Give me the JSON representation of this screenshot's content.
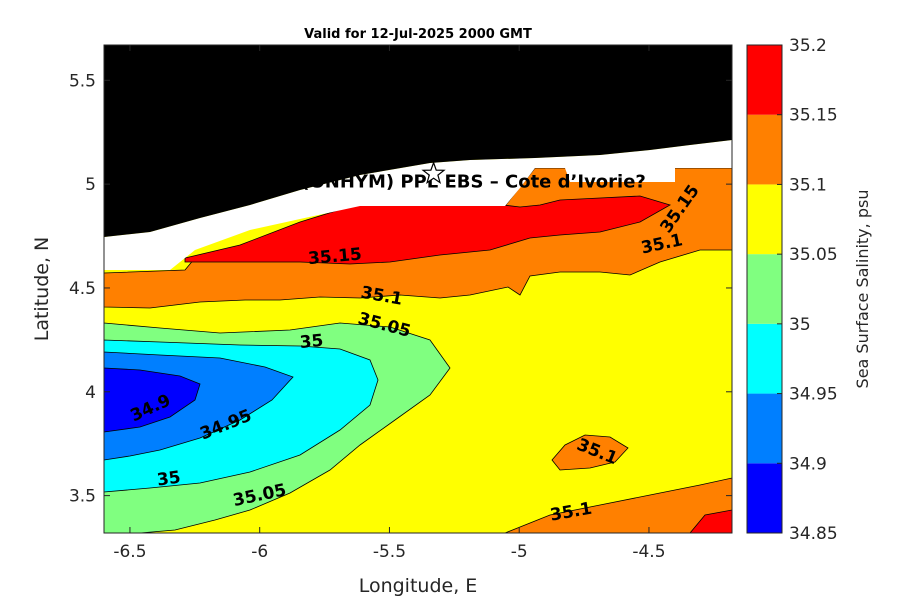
{
  "chart_data": {
    "type": "heatmap",
    "subtype": "filled-contour",
    "title": "Valid for 12-Jul-2025 2000 GMT",
    "xlabel": "Longitude, E",
    "ylabel": "Latitude, N",
    "xlim": [
      -6.6,
      -4.18
    ],
    "ylim": [
      3.32,
      5.67
    ],
    "xticks": [
      -6.5,
      -6,
      -5.5,
      -5,
      -4.5
    ],
    "xtick_labels": [
      "-6.5",
      "-6",
      "-5.5",
      "-5",
      "-4.5"
    ],
    "yticks": [
      3.5,
      4,
      4.5,
      5,
      5.5
    ],
    "ytick_labels": [
      "3.5",
      "4",
      "4.5",
      "5",
      "5.5"
    ],
    "grid": false,
    "colorbar": {
      "label": "Sea Surface Salinity, psu",
      "levels": [
        34.85,
        34.9,
        34.95,
        35,
        35.05,
        35.1,
        35.15,
        35.2
      ],
      "tick_labels": [
        "34.85",
        "34.9",
        "34.95",
        "35",
        "35.05",
        "35.1",
        "35.15",
        "35.2"
      ],
      "colors": [
        "#0000ff",
        "#007fff",
        "#00ffff",
        "#80ff80",
        "#ffff00",
        "#ff8000",
        "#ff0000"
      ]
    },
    "land_color": "#000000",
    "nodata_color": "#ffffff",
    "contour_labels": [
      {
        "text": "34.9",
        "lon": -6.42,
        "lat": 3.92
      },
      {
        "text": "34.95",
        "lon": -6.13,
        "lat": 3.84
      },
      {
        "text": "35",
        "lon": -6.35,
        "lat": 3.58
      },
      {
        "text": "35",
        "lon": -5.8,
        "lat": 4.24
      },
      {
        "text": "35.05",
        "lon": -6.0,
        "lat": 3.5
      },
      {
        "text": "35.05",
        "lon": -5.52,
        "lat": 4.32
      },
      {
        "text": "35.1",
        "lon": -5.53,
        "lat": 4.46
      },
      {
        "text": "35.15",
        "lon": -5.71,
        "lat": 4.65
      },
      {
        "text": "35.15",
        "lon": -4.38,
        "lat": 4.88
      },
      {
        "text": "35.1",
        "lon": -4.45,
        "lat": 4.71
      },
      {
        "text": "35.1",
        "lon": -4.7,
        "lat": 3.71
      },
      {
        "text": "35.1",
        "lon": -4.8,
        "lat": 3.42
      }
    ],
    "site": {
      "label": "CNPA (ONHYM) PPL EBS  – Cote d’Ivorie?",
      "lon": -5.33,
      "lat": 5.05,
      "marker": "star"
    }
  }
}
